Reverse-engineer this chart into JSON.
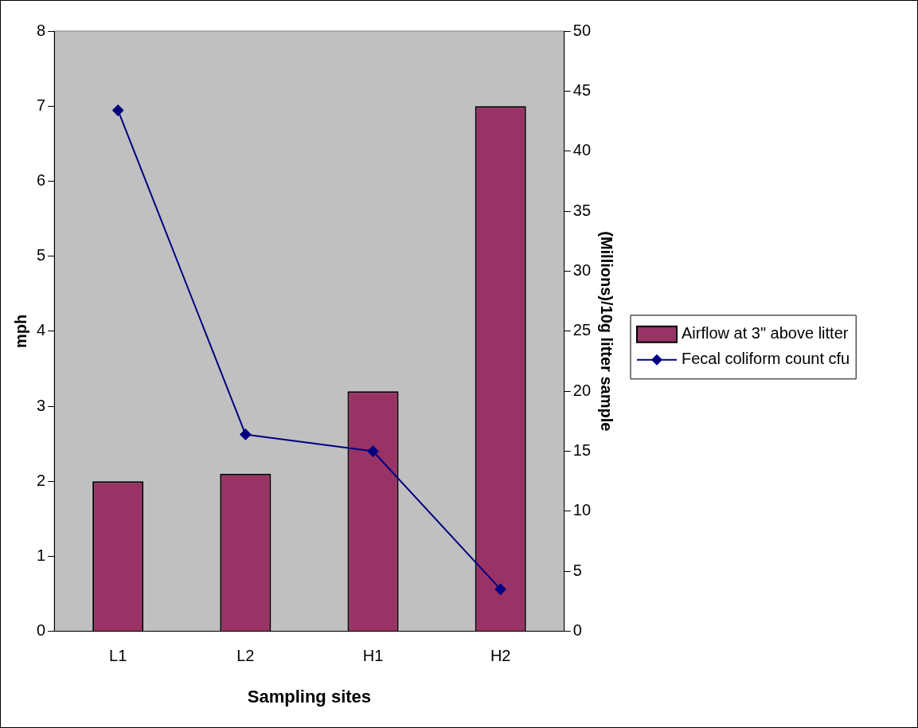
{
  "chart_data": {
    "type": "bar",
    "xlabel": "Sampling sites",
    "ylabel": "mph",
    "y2label": "(Millions)/10g litter sample",
    "categories": [
      "L1",
      "L2",
      "H1",
      "H2"
    ],
    "series": [
      {
        "name": "Airflow at 3\" above litter",
        "color": "#993366",
        "values": [
          2.0,
          2.1,
          3.2,
          7.0
        ]
      },
      {
        "name": "Fecal coliform count cfu",
        "type": "line",
        "axis": "y2",
        "color": "#000080",
        "marker": "diamond",
        "values": [
          43.4,
          16.4,
          15.0,
          3.5
        ]
      }
    ],
    "ylim": [
      0,
      8
    ],
    "yticks": [
      0,
      1,
      2,
      3,
      4,
      5,
      6,
      7,
      8
    ],
    "y2lim": [
      0,
      50
    ],
    "y2ticks": [
      0,
      5,
      10,
      15,
      20,
      25,
      30,
      35,
      40,
      45,
      50
    ],
    "grid": false,
    "legend": "right"
  }
}
